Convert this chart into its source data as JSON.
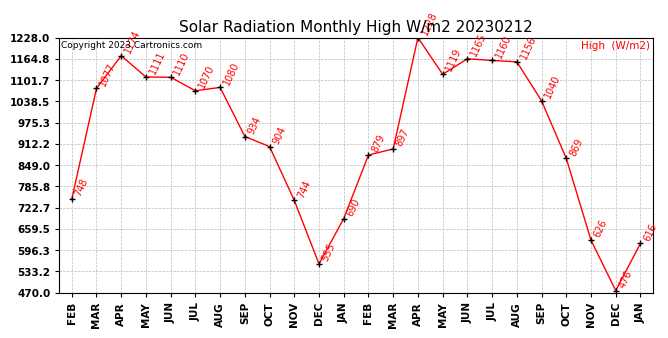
{
  "title": "Solar Radiation Monthly High W/m2 20230212",
  "copyright": "Copyright 2023 Cartronics.com",
  "legend_label": "High  (W/m2)",
  "months": [
    "FEB",
    "MAR",
    "APR",
    "MAY",
    "JUN",
    "JUL",
    "AUG",
    "SEP",
    "OCT",
    "NOV",
    "DEC",
    "JAN",
    "FEB",
    "MAR",
    "APR",
    "MAY",
    "JUN",
    "JUL",
    "AUG",
    "SEP",
    "OCT",
    "NOV",
    "DEC",
    "JAN"
  ],
  "values": [
    748,
    1077,
    1174,
    1111,
    1110,
    1070,
    1080,
    934,
    904,
    744,
    555,
    690,
    879,
    897,
    1228,
    1119,
    1165,
    1160,
    1156,
    1040,
    869,
    626,
    476,
    616
  ],
  "line_color": "red",
  "marker_color": "black",
  "marker_size": 5,
  "ylim_min": 470.0,
  "ylim_max": 1228.0,
  "yticks": [
    470.0,
    533.2,
    596.3,
    659.5,
    722.7,
    785.8,
    849.0,
    912.2,
    975.3,
    1038.5,
    1101.7,
    1164.8,
    1228.0
  ],
  "title_fontsize": 11,
  "label_fontsize": 7.5,
  "tick_fontsize": 7.5,
  "annotation_fontsize": 7,
  "background_color": "white",
  "grid_color": "#bbbbbb"
}
